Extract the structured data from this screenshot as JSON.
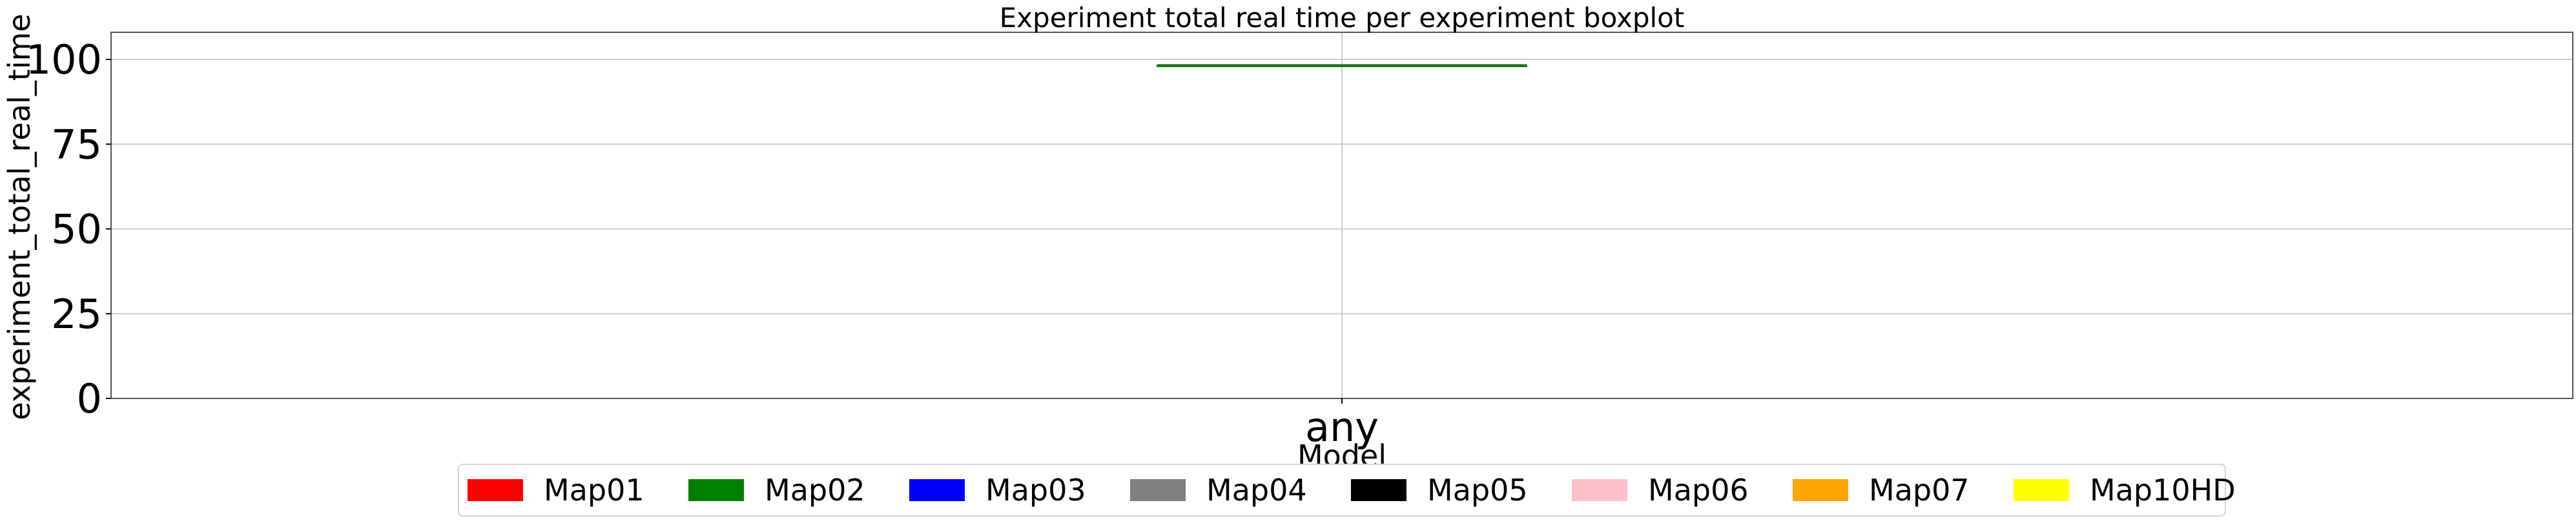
{
  "chart_data": {
    "type": "box",
    "title": "Experiment total real time per experiment boxplot",
    "xlabel": "Model",
    "ylabel": "experiment_total_real_time",
    "categories": [
      "any"
    ],
    "ylim": [
      0,
      108
    ],
    "yticks": [
      0,
      25,
      50,
      75,
      100
    ],
    "grid": true,
    "legend_position": "bottom-center",
    "boxes": [
      {
        "category": "any",
        "series": "Map02",
        "color": "#008000",
        "min": 98.3,
        "q1": 98.3,
        "median": 98.3,
        "q3": 98.3,
        "max": 98.3
      }
    ],
    "series": [
      {
        "name": "Map01",
        "color": "#ff0000"
      },
      {
        "name": "Map02",
        "color": "#008000"
      },
      {
        "name": "Map03",
        "color": "#0000ff"
      },
      {
        "name": "Map04",
        "color": "#808080"
      },
      {
        "name": "Map05",
        "color": "#000000"
      },
      {
        "name": "Map06",
        "color": "#ffc0cb"
      },
      {
        "name": "Map07",
        "color": "#ffa500"
      },
      {
        "name": "Map10HD",
        "color": "#ffff00"
      }
    ]
  }
}
